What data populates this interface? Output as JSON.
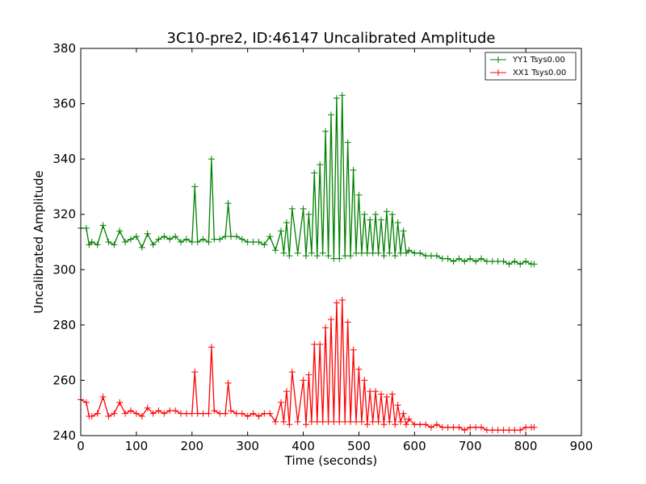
{
  "chart_data": {
    "type": "line",
    "title": "3C10-pre2, ID:46147 Uncalibrated Amplitude",
    "xlabel": "Time (seconds)",
    "ylabel": "Uncalibrated Amplitude",
    "xlim": [
      0,
      900
    ],
    "ylim": [
      240,
      380
    ],
    "xticks": [
      0,
      100,
      200,
      300,
      400,
      500,
      600,
      700,
      800,
      900
    ],
    "yticks": [
      240,
      260,
      280,
      300,
      320,
      340,
      360,
      380
    ],
    "grid": false,
    "legend_position": "top-right",
    "marker": "plus",
    "series": [
      {
        "name": "YY1 Tsys0.00",
        "color": "#008000",
        "x": [
          0,
          10,
          15,
          20,
          30,
          40,
          50,
          60,
          70,
          80,
          90,
          100,
          110,
          120,
          130,
          140,
          150,
          160,
          170,
          180,
          190,
          200,
          205,
          210,
          220,
          230,
          235,
          240,
          250,
          260,
          265,
          270,
          280,
          290,
          300,
          310,
          320,
          330,
          340,
          350,
          360,
          365,
          370,
          375,
          380,
          390,
          400,
          405,
          410,
          415,
          420,
          425,
          430,
          435,
          440,
          445,
          450,
          455,
          460,
          465,
          470,
          475,
          480,
          485,
          490,
          495,
          500,
          505,
          510,
          515,
          520,
          525,
          530,
          535,
          540,
          545,
          550,
          555,
          560,
          565,
          570,
          575,
          580,
          585,
          590,
          600,
          610,
          620,
          630,
          640,
          650,
          660,
          670,
          680,
          690,
          700,
          710,
          720,
          730,
          740,
          750,
          760,
          770,
          780,
          790,
          800,
          810,
          815
        ],
        "values": [
          315,
          315,
          309,
          310,
          309,
          316,
          310,
          309,
          314,
          310,
          311,
          312,
          308,
          313,
          309,
          311,
          312,
          311,
          312,
          310,
          311,
          310,
          330,
          310,
          311,
          310,
          340,
          311,
          311,
          312,
          324,
          312,
          312,
          311,
          310,
          310,
          310,
          309,
          312,
          307,
          314,
          306,
          317,
          305,
          322,
          306,
          322,
          305,
          320,
          306,
          335,
          305,
          338,
          306,
          350,
          305,
          356,
          304,
          362,
          304,
          363,
          305,
          346,
          305,
          336,
          306,
          327,
          306,
          320,
          306,
          318,
          306,
          320,
          306,
          318,
          305,
          321,
          306,
          320,
          305,
          317,
          306,
          314,
          306,
          307,
          306,
          306,
          305,
          305,
          305,
          304,
          304,
          303,
          304,
          303,
          304,
          303,
          304,
          303,
          303,
          303,
          303,
          302,
          303,
          302,
          303,
          302,
          302
        ]
      },
      {
        "name": "XX1 Tsys0.00",
        "color": "#ff0000",
        "x": [
          0,
          10,
          15,
          20,
          30,
          40,
          50,
          60,
          70,
          80,
          90,
          100,
          110,
          120,
          130,
          140,
          150,
          160,
          170,
          180,
          190,
          200,
          205,
          210,
          220,
          230,
          235,
          240,
          250,
          260,
          265,
          270,
          280,
          290,
          300,
          310,
          320,
          330,
          340,
          350,
          360,
          365,
          370,
          375,
          380,
          390,
          400,
          405,
          410,
          415,
          420,
          425,
          430,
          435,
          440,
          445,
          450,
          455,
          460,
          465,
          470,
          475,
          480,
          485,
          490,
          495,
          500,
          505,
          510,
          515,
          520,
          525,
          530,
          535,
          540,
          545,
          550,
          555,
          560,
          565,
          570,
          575,
          580,
          585,
          590,
          600,
          610,
          620,
          630,
          640,
          650,
          660,
          670,
          680,
          690,
          700,
          710,
          720,
          730,
          740,
          750,
          760,
          770,
          780,
          790,
          800,
          810,
          815
        ],
        "values": [
          253,
          252,
          247,
          247,
          248,
          254,
          247,
          248,
          252,
          248,
          249,
          248,
          247,
          250,
          248,
          249,
          248,
          249,
          249,
          248,
          248,
          248,
          263,
          248,
          248,
          248,
          272,
          249,
          248,
          248,
          259,
          249,
          248,
          248,
          247,
          248,
          247,
          248,
          248,
          245,
          252,
          245,
          256,
          244,
          263,
          245,
          260,
          244,
          262,
          245,
          273,
          245,
          273,
          245,
          279,
          245,
          282,
          245,
          288,
          245,
          289,
          245,
          281,
          245,
          271,
          245,
          264,
          245,
          260,
          244,
          256,
          245,
          256,
          245,
          255,
          244,
          254,
          245,
          255,
          244,
          251,
          245,
          248,
          244,
          246,
          244,
          244,
          244,
          243,
          244,
          243,
          243,
          243,
          243,
          242,
          243,
          243,
          243,
          242,
          242,
          242,
          242,
          242,
          242,
          242,
          243,
          243,
          243
        ]
      }
    ]
  }
}
